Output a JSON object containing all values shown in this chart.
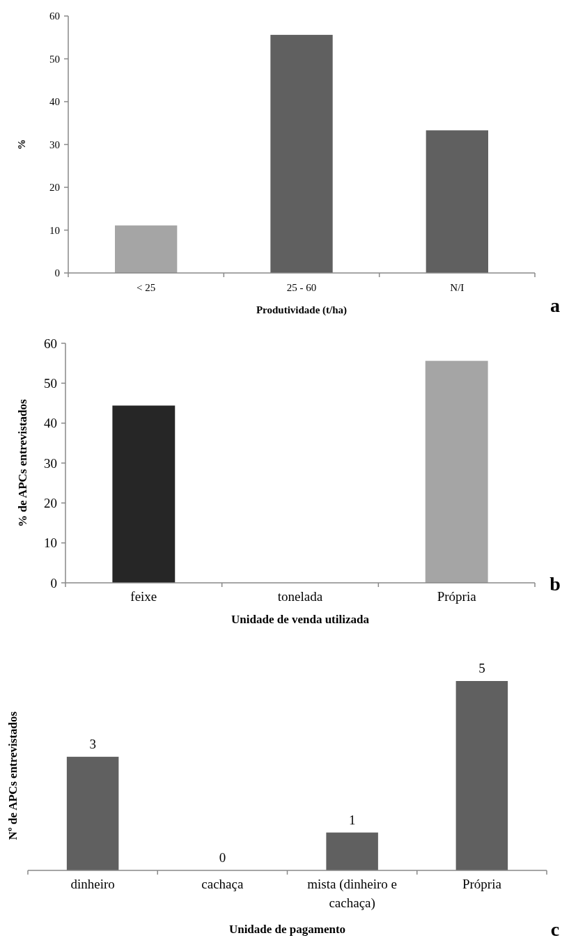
{
  "chart_data": [
    {
      "type": "bar",
      "xlabel": "Produtividade (t/ha)",
      "ylabel": "%",
      "categories": [
        "< 25",
        "25 - 60",
        "N/I"
      ],
      "values": [
        11.1,
        55.6,
        33.3
      ],
      "colors": [
        "#a5a5a5",
        "#606060",
        "#606060"
      ],
      "ylim": [
        0,
        60
      ],
      "yticks": [
        0,
        10,
        20,
        30,
        40,
        50,
        60
      ],
      "annotations": [
        "a"
      ]
    },
    {
      "type": "bar",
      "xlabel": "Unidade de venda utilizada",
      "ylabel": "% de APCs entrevistados",
      "categories": [
        "feixe",
        "tonelada",
        "Própria"
      ],
      "values": [
        44.4,
        0,
        55.6
      ],
      "colors": [
        "#262626",
        "#606060",
        "#a5a5a5"
      ],
      "ylim": [
        0,
        60
      ],
      "yticks": [
        0,
        10,
        20,
        30,
        40,
        50,
        60
      ],
      "annotations": [
        "b"
      ]
    },
    {
      "type": "bar",
      "xlabel": "Unidade de pagamento",
      "ylabel": "Nº de APCs entrevistados",
      "categories": [
        "dinheiro",
        "cachaça",
        "mista (dinheiro e cachaça)",
        "Própria"
      ],
      "values": [
        3,
        0,
        1,
        5
      ],
      "colors": [
        "#606060",
        "#606060",
        "#606060",
        "#606060"
      ],
      "data_labels": true,
      "tick_labels": "x",
      "annotations": [
        "c"
      ]
    }
  ]
}
